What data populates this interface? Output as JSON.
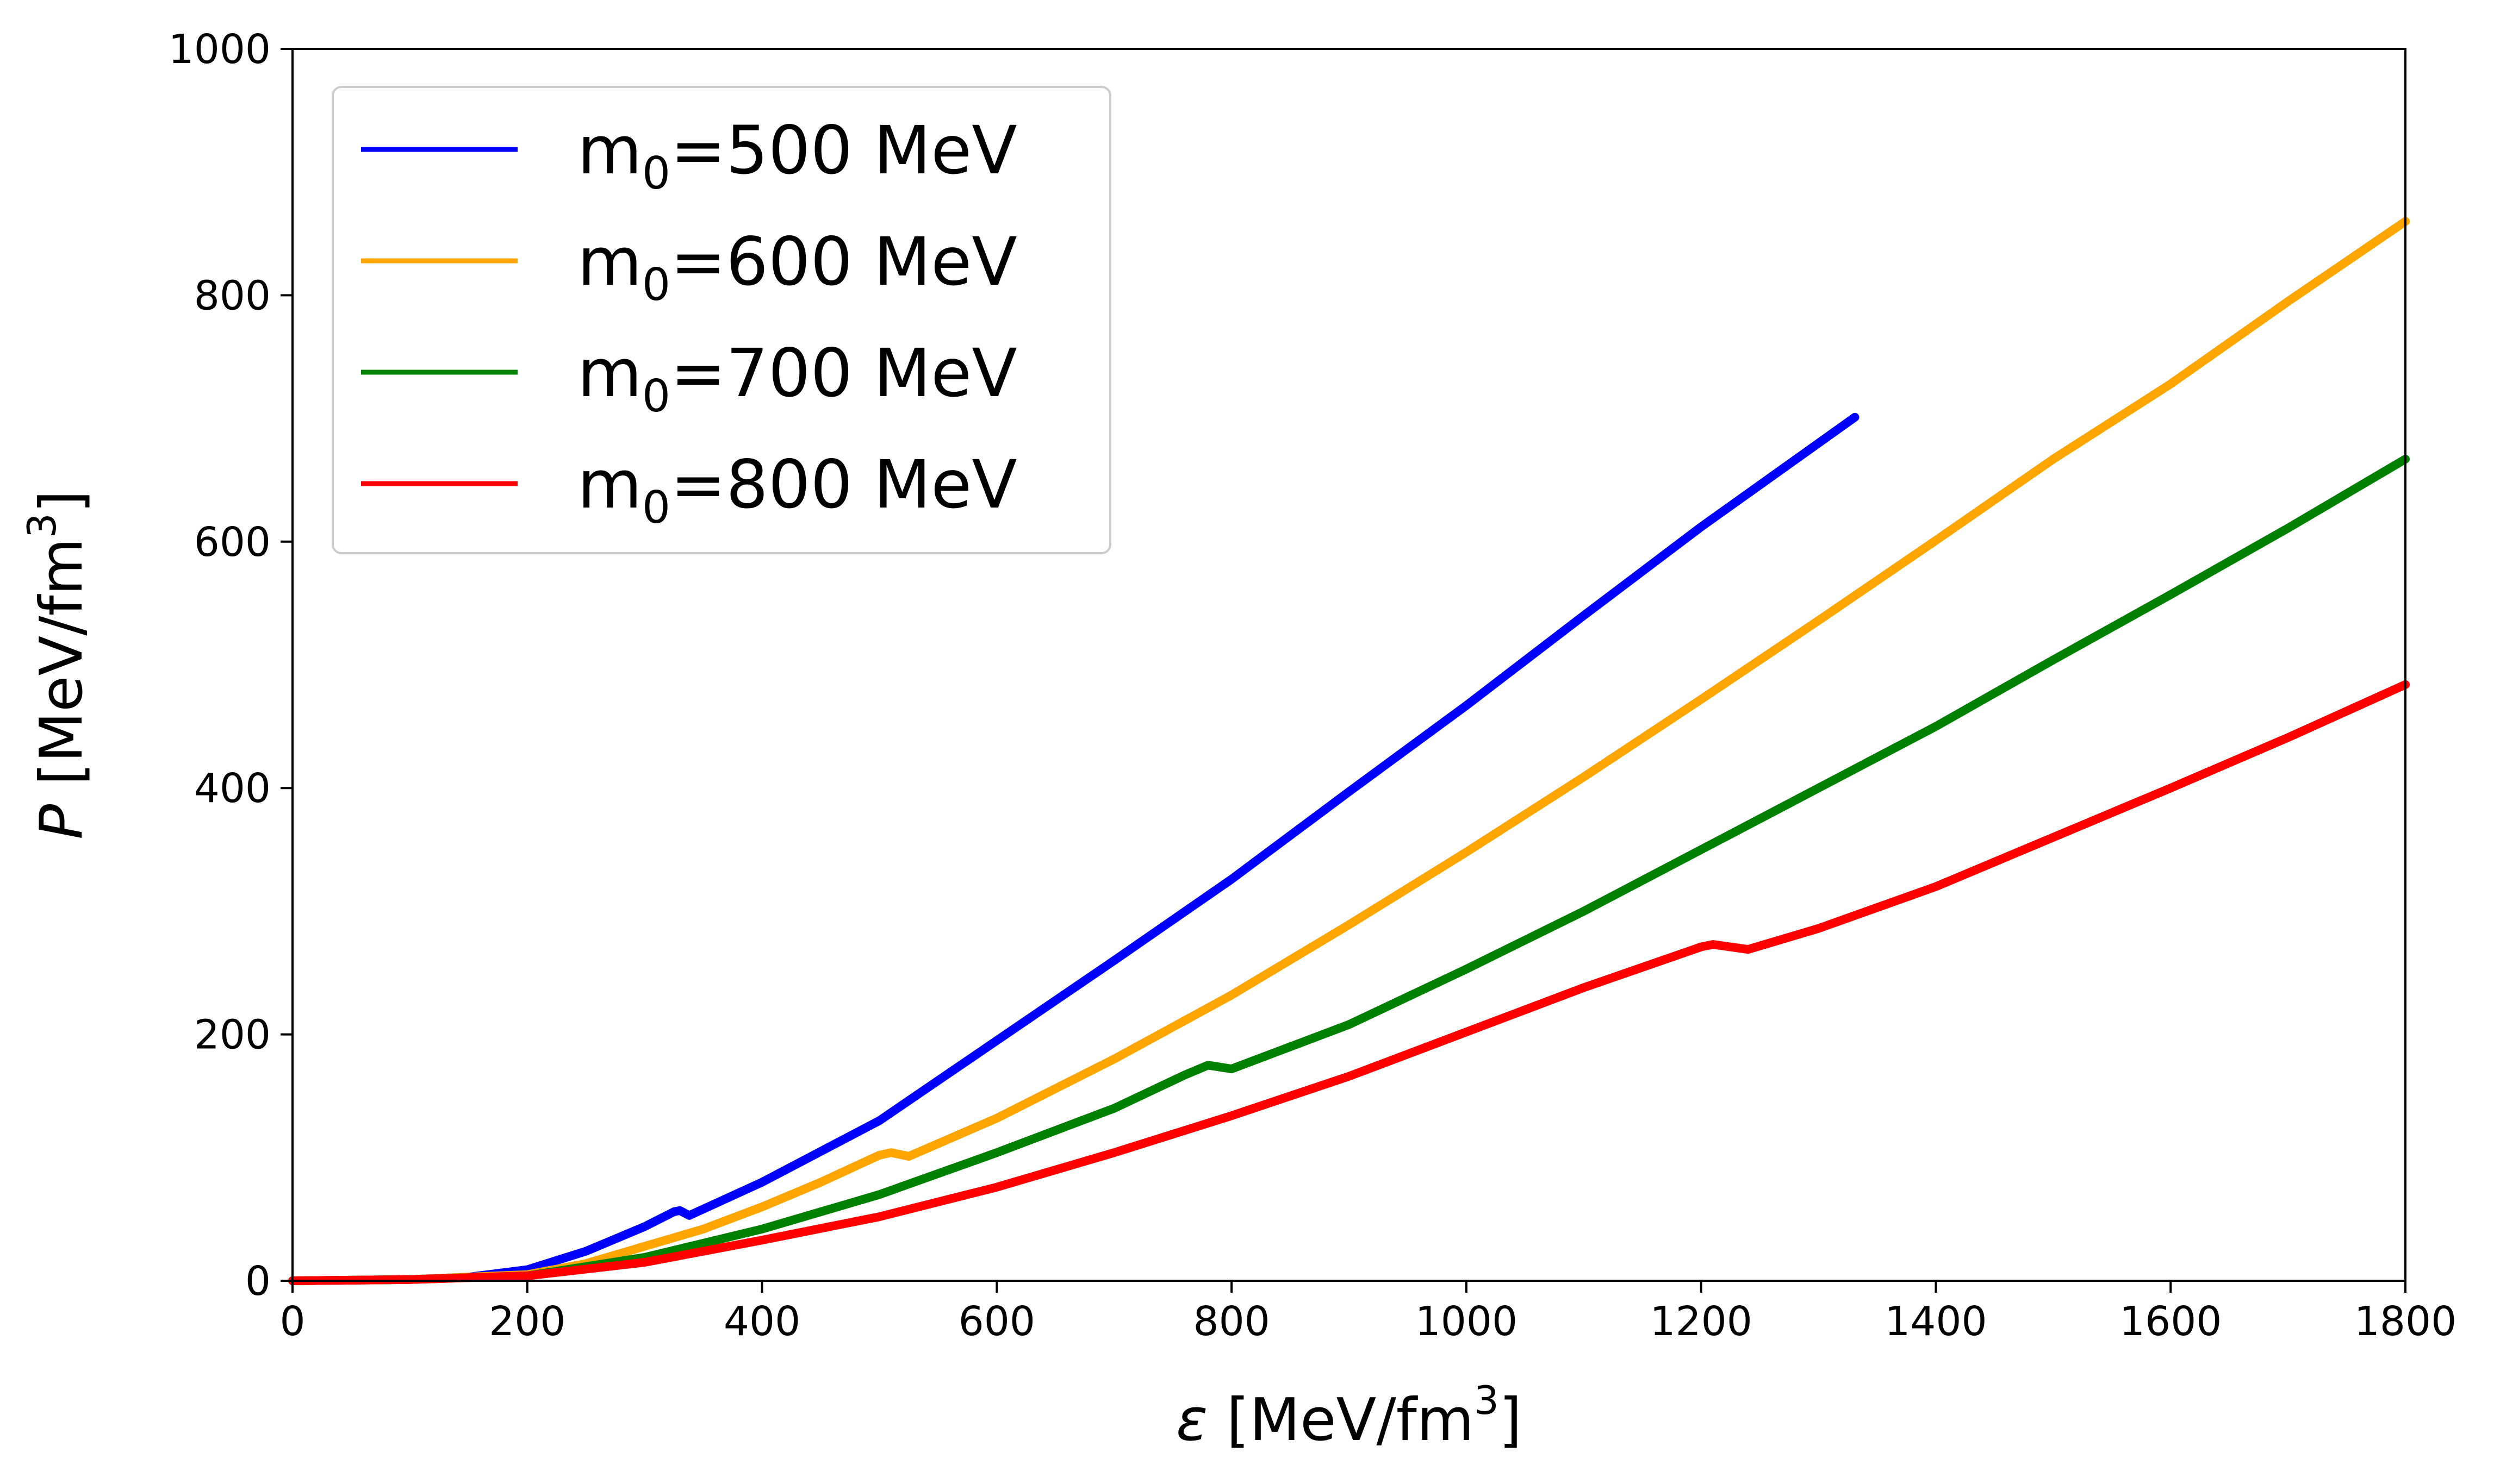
{
  "chart_data": {
    "type": "line",
    "title": "",
    "xlabel": {
      "symbol": "ε",
      "unit": "[MeV/fm",
      "sup": "3",
      "close": "]"
    },
    "ylabel": {
      "symbol": "P",
      "unit": "[MeV/fm",
      "sup": "3",
      "close": "]"
    },
    "xlim": [
      0,
      1800
    ],
    "ylim": [
      0,
      1000
    ],
    "xticks": [
      0,
      200,
      400,
      600,
      800,
      1000,
      1200,
      1400,
      1600,
      1800
    ],
    "yticks": [
      0,
      200,
      400,
      600,
      800,
      1000
    ],
    "xtick_labels": [
      "0",
      "200",
      "400",
      "600",
      "800",
      "1000",
      "1200",
      "1400",
      "1600",
      "1800"
    ],
    "ytick_labels": [
      "0",
      "200",
      "400",
      "600",
      "800",
      "1000"
    ],
    "grid": false,
    "legend_position": "top-left",
    "series": [
      {
        "name": "m0=500 MeV",
        "label": {
          "base": "m",
          "sub": "0",
          "rest": "=500 MeV"
        },
        "color": "#0000ff",
        "points": [
          [
            0,
            0
          ],
          [
            100,
            1
          ],
          [
            150,
            3
          ],
          [
            200,
            9
          ],
          [
            250,
            24
          ],
          [
            300,
            44
          ],
          [
            325,
            56
          ],
          [
            330,
            57
          ],
          [
            338,
            53
          ],
          [
            400,
            80
          ],
          [
            500,
            130
          ],
          [
            600,
            195
          ],
          [
            700,
            260
          ],
          [
            800,
            326
          ],
          [
            900,
            397
          ],
          [
            1000,
            467
          ],
          [
            1100,
            540
          ],
          [
            1200,
            612
          ],
          [
            1331,
            701
          ]
        ]
      },
      {
        "name": "m0=600 MeV",
        "label": {
          "base": "m",
          "sub": "0",
          "rest": "=600 MeV"
        },
        "color": "#ffa500",
        "points": [
          [
            0,
            0
          ],
          [
            100,
            1
          ],
          [
            200,
            5
          ],
          [
            250,
            14
          ],
          [
            300,
            28
          ],
          [
            350,
            42
          ],
          [
            400,
            60
          ],
          [
            450,
            80
          ],
          [
            500,
            102
          ],
          [
            510,
            104
          ],
          [
            525,
            101
          ],
          [
            600,
            132
          ],
          [
            700,
            180
          ],
          [
            800,
            232
          ],
          [
            900,
            289
          ],
          [
            1000,
            348
          ],
          [
            1100,
            409
          ],
          [
            1200,
            472
          ],
          [
            1300,
            536
          ],
          [
            1400,
            601
          ],
          [
            1500,
            667
          ],
          [
            1600,
            728
          ],
          [
            1700,
            795
          ],
          [
            1800,
            860
          ]
        ]
      },
      {
        "name": "m0=700 MeV",
        "label": {
          "base": "m",
          "sub": "0",
          "rest": "=700 MeV"
        },
        "color": "#008000",
        "points": [
          [
            0,
            0
          ],
          [
            100,
            1
          ],
          [
            200,
            4
          ],
          [
            300,
            19
          ],
          [
            400,
            42
          ],
          [
            500,
            70
          ],
          [
            600,
            104
          ],
          [
            700,
            140
          ],
          [
            760,
            167
          ],
          [
            780,
            175
          ],
          [
            800,
            172
          ],
          [
            900,
            208
          ],
          [
            1000,
            253
          ],
          [
            1100,
            300
          ],
          [
            1200,
            350
          ],
          [
            1300,
            400
          ],
          [
            1400,
            450
          ],
          [
            1500,
            504
          ],
          [
            1600,
            557
          ],
          [
            1700,
            611
          ],
          [
            1800,
            667
          ]
        ]
      },
      {
        "name": "m0=800 MeV",
        "label": {
          "base": "m",
          "sub": "0",
          "rest": "=800 MeV"
        },
        "color": "#ff0000",
        "points": [
          [
            0,
            0
          ],
          [
            100,
            1
          ],
          [
            200,
            4
          ],
          [
            300,
            15
          ],
          [
            400,
            33
          ],
          [
            500,
            52
          ],
          [
            600,
            76
          ],
          [
            700,
            104
          ],
          [
            800,
            134
          ],
          [
            900,
            166
          ],
          [
            1000,
            202
          ],
          [
            1100,
            238
          ],
          [
            1200,
            271
          ],
          [
            1210,
            273
          ],
          [
            1240,
            269
          ],
          [
            1300,
            286
          ],
          [
            1400,
            320
          ],
          [
            1500,
            360
          ],
          [
            1600,
            400
          ],
          [
            1700,
            441
          ],
          [
            1800,
            484
          ]
        ]
      }
    ]
  }
}
